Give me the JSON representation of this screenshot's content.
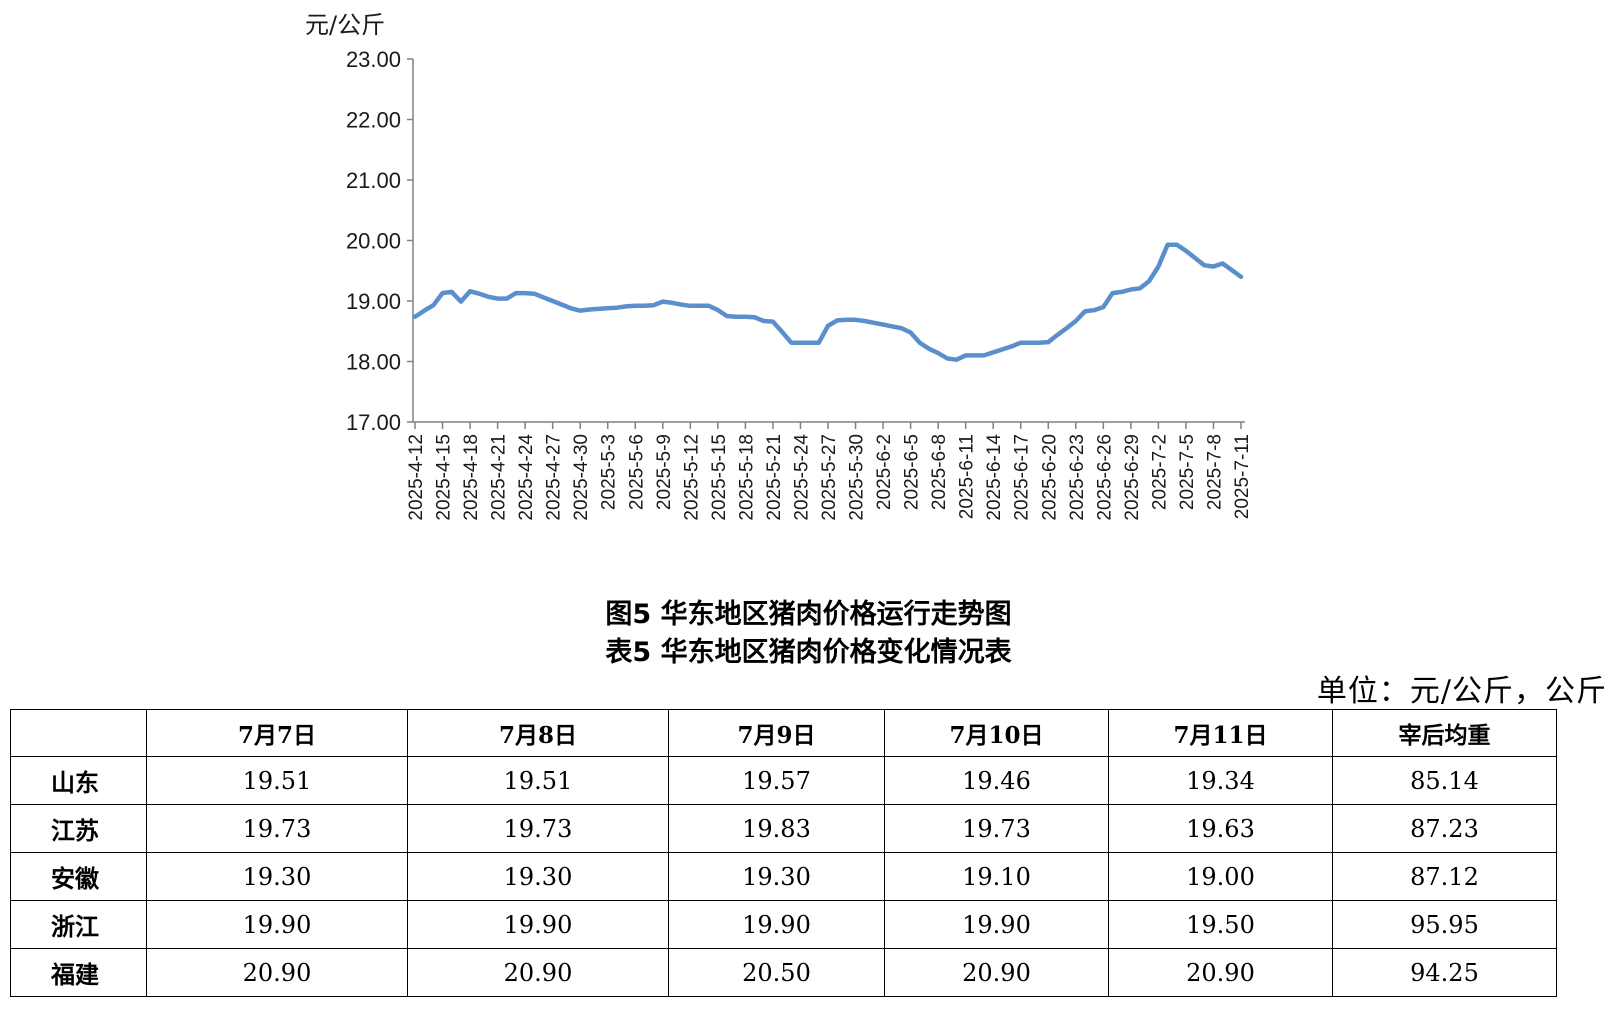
{
  "chart_data": {
    "type": "line",
    "title": "图5  华东地区猪肉价格运行走势图",
    "ylabel": "元/公斤",
    "xlabel": "",
    "ylim": [
      17.0,
      23.0
    ],
    "yticks": [
      "23.00",
      "22.00",
      "21.00",
      "20.00",
      "19.00",
      "18.00",
      "17.00"
    ],
    "tick_dates": [
      "2025-4-12",
      "2025-4-15",
      "2025-4-18",
      "2025-4-21",
      "2025-4-24",
      "2025-4-27",
      "2025-4-30",
      "2025-5-3",
      "2025-5-6",
      "2025-5-9",
      "2025-5-12",
      "2025-5-15",
      "2025-5-18",
      "2025-5-21",
      "2025-5-24",
      "2025-5-27",
      "2025-5-30",
      "2025-6-2",
      "2025-6-5",
      "2025-6-8",
      "2025-6-11",
      "2025-6-14",
      "2025-6-17",
      "2025-6-20",
      "2025-6-23",
      "2025-6-26",
      "2025-6-29",
      "2025-7-2",
      "2025-7-5",
      "2025-7-8",
      "2025-7-11"
    ],
    "grid": false,
    "line_color": "#5b8fcb",
    "series": [
      {
        "x": [
          "2025-4-12",
          "2025-4-13",
          "2025-4-14",
          "2025-4-15",
          "2025-4-16",
          "2025-4-17",
          "2025-4-18",
          "2025-4-19",
          "2025-4-20",
          "2025-4-21",
          "2025-4-22",
          "2025-4-23",
          "2025-4-24",
          "2025-4-25",
          "2025-4-26",
          "2025-4-27",
          "2025-4-28",
          "2025-4-29",
          "2025-4-30",
          "2025-5-1",
          "2025-5-2",
          "2025-5-3",
          "2025-5-4",
          "2025-5-5",
          "2025-5-6",
          "2025-5-7",
          "2025-5-8",
          "2025-5-9",
          "2025-5-10",
          "2025-5-11",
          "2025-5-12",
          "2025-5-13",
          "2025-5-14",
          "2025-5-15",
          "2025-5-16",
          "2025-5-17",
          "2025-5-18",
          "2025-5-19",
          "2025-5-20",
          "2025-5-21",
          "2025-5-22",
          "2025-5-23",
          "2025-5-24",
          "2025-5-25",
          "2025-5-26",
          "2025-5-27",
          "2025-5-28",
          "2025-5-29",
          "2025-5-30",
          "2025-5-31",
          "2025-6-1",
          "2025-6-2",
          "2025-6-3",
          "2025-6-4",
          "2025-6-5",
          "2025-6-6",
          "2025-6-7",
          "2025-6-8",
          "2025-6-9",
          "2025-6-10",
          "2025-6-11",
          "2025-6-12",
          "2025-6-13",
          "2025-6-14",
          "2025-6-15",
          "2025-6-16",
          "2025-6-17",
          "2025-6-18",
          "2025-6-19",
          "2025-6-20",
          "2025-6-21",
          "2025-6-22",
          "2025-6-23",
          "2025-6-24",
          "2025-6-25",
          "2025-6-26",
          "2025-6-27",
          "2025-6-28",
          "2025-6-29",
          "2025-6-30",
          "2025-7-1",
          "2025-7-2",
          "2025-7-3",
          "2025-7-4",
          "2025-7-5",
          "2025-7-6",
          "2025-7-7",
          "2025-7-8",
          "2025-7-9",
          "2025-7-10",
          "2025-7-11"
        ],
        "values": [
          18.74,
          18.84,
          18.93,
          19.13,
          19.15,
          18.99,
          19.16,
          19.12,
          19.07,
          19.04,
          19.04,
          19.13,
          19.13,
          19.12,
          19.06,
          19.0,
          18.94,
          18.88,
          18.84,
          18.86,
          18.87,
          18.88,
          18.89,
          18.91,
          18.92,
          18.92,
          18.93,
          18.99,
          18.97,
          18.94,
          18.92,
          18.92,
          18.92,
          18.85,
          18.75,
          18.74,
          18.74,
          18.73,
          18.67,
          18.66,
          18.49,
          18.31,
          18.31,
          18.31,
          18.31,
          18.59,
          18.68,
          18.69,
          18.69,
          18.67,
          18.64,
          18.61,
          18.58,
          18.55,
          18.48,
          18.31,
          18.21,
          18.14,
          18.05,
          18.03,
          18.1,
          18.1,
          18.1,
          18.15,
          18.2,
          18.25,
          18.31,
          18.31,
          18.31,
          18.32,
          18.44,
          18.55,
          18.67,
          18.83,
          18.85,
          18.9,
          19.13,
          19.15,
          19.19,
          19.21,
          19.33,
          19.57,
          19.93,
          19.93,
          19.83,
          19.71,
          19.59,
          19.57,
          19.62,
          19.51,
          19.4
        ]
      }
    ]
  },
  "caption2": "表5  华东地区猪肉价格变化情况表",
  "unit_note": "单位：元/公斤，公斤",
  "table": {
    "headers": [
      "",
      "7月7日",
      "7月8日",
      "7月9日",
      "7月10日",
      "7月11日",
      "宰后均重"
    ],
    "rows": [
      [
        "山东",
        "19.51",
        "19.51",
        "19.57",
        "19.46",
        "19.34",
        "85.14"
      ],
      [
        "江苏",
        "19.73",
        "19.73",
        "19.83",
        "19.73",
        "19.63",
        "87.23"
      ],
      [
        "安徽",
        "19.30",
        "19.30",
        "19.30",
        "19.10",
        "19.00",
        "87.12"
      ],
      [
        "浙江",
        "19.90",
        "19.90",
        "19.90",
        "19.90",
        "19.50",
        "95.95"
      ],
      [
        "福建",
        "20.90",
        "20.90",
        "20.50",
        "20.90",
        "20.90",
        "94.25"
      ]
    ]
  }
}
